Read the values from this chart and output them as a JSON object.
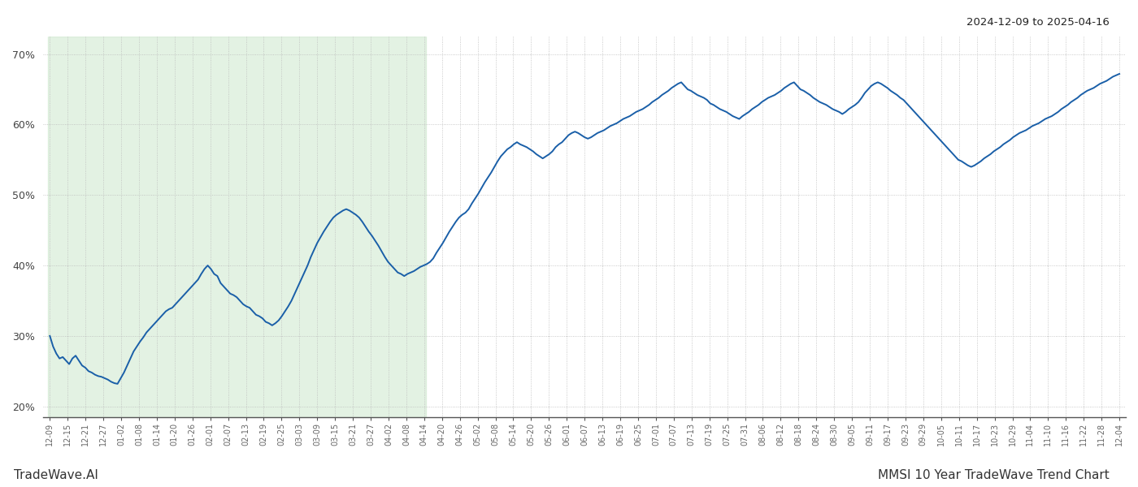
{
  "title_right": "2024-12-09 to 2025-04-16",
  "footer_left": "TradeWave.AI",
  "footer_right": "MMSI 10 Year TradeWave Trend Chart",
  "ylim": [
    0.185,
    0.725
  ],
  "yticks": [
    0.2,
    0.3,
    0.4,
    0.5,
    0.6,
    0.7
  ],
  "line_color": "#1a5fa8",
  "line_width": 1.4,
  "background_color": "#ffffff",
  "grid_color": "#bbbbbb",
  "shade_color": "#c8e6c8",
  "shade_alpha": 0.5,
  "x_labels": [
    "12-09",
    "12-15",
    "12-21",
    "12-27",
    "01-02",
    "01-08",
    "01-14",
    "01-20",
    "01-26",
    "02-01",
    "02-07",
    "02-13",
    "02-19",
    "02-25",
    "03-03",
    "03-09",
    "03-15",
    "03-21",
    "03-27",
    "04-02",
    "04-08",
    "04-14",
    "04-20",
    "04-26",
    "05-02",
    "05-08",
    "05-14",
    "05-20",
    "05-26",
    "06-01",
    "06-07",
    "06-13",
    "06-19",
    "06-25",
    "07-01",
    "07-07",
    "07-13",
    "07-19",
    "07-25",
    "07-31",
    "08-06",
    "08-12",
    "08-18",
    "08-24",
    "08-30",
    "09-05",
    "09-11",
    "09-17",
    "09-23",
    "09-29",
    "10-05",
    "10-11",
    "10-17",
    "10-23",
    "10-29",
    "11-04",
    "11-10",
    "11-16",
    "11-22",
    "11-28",
    "12-04"
  ],
  "shade_end_label": "04-14",
  "y_values": [
    0.3,
    0.285,
    0.275,
    0.268,
    0.27,
    0.265,
    0.26,
    0.268,
    0.272,
    0.265,
    0.258,
    0.255,
    0.25,
    0.248,
    0.245,
    0.243,
    0.242,
    0.24,
    0.238,
    0.235,
    0.233,
    0.232,
    0.24,
    0.248,
    0.258,
    0.268,
    0.278,
    0.285,
    0.292,
    0.298,
    0.305,
    0.31,
    0.315,
    0.32,
    0.325,
    0.33,
    0.335,
    0.338,
    0.34,
    0.345,
    0.35,
    0.355,
    0.36,
    0.365,
    0.37,
    0.375,
    0.38,
    0.388,
    0.395,
    0.4,
    0.395,
    0.388,
    0.385,
    0.375,
    0.37,
    0.365,
    0.36,
    0.358,
    0.355,
    0.35,
    0.345,
    0.342,
    0.34,
    0.335,
    0.33,
    0.328,
    0.325,
    0.32,
    0.318,
    0.315,
    0.318,
    0.322,
    0.328,
    0.335,
    0.342,
    0.35,
    0.36,
    0.37,
    0.38,
    0.39,
    0.4,
    0.412,
    0.422,
    0.432,
    0.44,
    0.448,
    0.455,
    0.462,
    0.468,
    0.472,
    0.475,
    0.478,
    0.48,
    0.478,
    0.475,
    0.472,
    0.468,
    0.462,
    0.455,
    0.448,
    0.442,
    0.435,
    0.428,
    0.42,
    0.412,
    0.405,
    0.4,
    0.395,
    0.39,
    0.388,
    0.385,
    0.388,
    0.39,
    0.392,
    0.395,
    0.398,
    0.4,
    0.402,
    0.405,
    0.41,
    0.418,
    0.425,
    0.432,
    0.44,
    0.448,
    0.455,
    0.462,
    0.468,
    0.472,
    0.475,
    0.48,
    0.488,
    0.495,
    0.502,
    0.51,
    0.518,
    0.525,
    0.532,
    0.54,
    0.548,
    0.555,
    0.56,
    0.565,
    0.568,
    0.572,
    0.575,
    0.572,
    0.57,
    0.568,
    0.565,
    0.562,
    0.558,
    0.555,
    0.552,
    0.555,
    0.558,
    0.562,
    0.568,
    0.572,
    0.575,
    0.58,
    0.585,
    0.588,
    0.59,
    0.588,
    0.585,
    0.582,
    0.58,
    0.582,
    0.585,
    0.588,
    0.59,
    0.592,
    0.595,
    0.598,
    0.6,
    0.602,
    0.605,
    0.608,
    0.61,
    0.612,
    0.615,
    0.618,
    0.62,
    0.622,
    0.625,
    0.628,
    0.632,
    0.635,
    0.638,
    0.642,
    0.645,
    0.648,
    0.652,
    0.655,
    0.658,
    0.66,
    0.655,
    0.65,
    0.648,
    0.645,
    0.642,
    0.64,
    0.638,
    0.635,
    0.63,
    0.628,
    0.625,
    0.622,
    0.62,
    0.618,
    0.615,
    0.612,
    0.61,
    0.608,
    0.612,
    0.615,
    0.618,
    0.622,
    0.625,
    0.628,
    0.632,
    0.635,
    0.638,
    0.64,
    0.642,
    0.645,
    0.648,
    0.652,
    0.655,
    0.658,
    0.66,
    0.655,
    0.65,
    0.648,
    0.645,
    0.642,
    0.638,
    0.635,
    0.632,
    0.63,
    0.628,
    0.625,
    0.622,
    0.62,
    0.618,
    0.615,
    0.618,
    0.622,
    0.625,
    0.628,
    0.632,
    0.638,
    0.645,
    0.65,
    0.655,
    0.658,
    0.66,
    0.658,
    0.655,
    0.652,
    0.648,
    0.645,
    0.642,
    0.638,
    0.635,
    0.63,
    0.625,
    0.62,
    0.615,
    0.61,
    0.605,
    0.6,
    0.595,
    0.59,
    0.585,
    0.58,
    0.575,
    0.57,
    0.565,
    0.56,
    0.555,
    0.55,
    0.548,
    0.545,
    0.542,
    0.54,
    0.542,
    0.545,
    0.548,
    0.552,
    0.555,
    0.558,
    0.562,
    0.565,
    0.568,
    0.572,
    0.575,
    0.578,
    0.582,
    0.585,
    0.588,
    0.59,
    0.592,
    0.595,
    0.598,
    0.6,
    0.602,
    0.605,
    0.608,
    0.61,
    0.612,
    0.615,
    0.618,
    0.622,
    0.625,
    0.628,
    0.632,
    0.635,
    0.638,
    0.642,
    0.645,
    0.648,
    0.65,
    0.652,
    0.655,
    0.658,
    0.66,
    0.662,
    0.665,
    0.668,
    0.67,
    0.672
  ]
}
